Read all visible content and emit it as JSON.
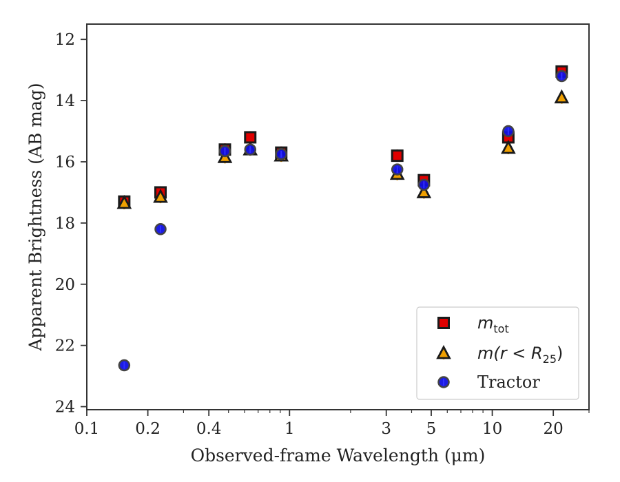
{
  "chart_data": {
    "type": "scatter",
    "title": "",
    "xlabel": "Observed-frame Wavelength (μm)",
    "ylabel": "Apparent Brightness (AB mag)",
    "x_scale": "log",
    "xlim": [
      0.1,
      30
    ],
    "ylim": [
      24.1,
      11.5
    ],
    "y_inverted": true,
    "x_ticks": [
      0.1,
      0.2,
      0.4,
      1,
      3,
      5,
      10,
      20
    ],
    "x_tick_labels": [
      "0.1",
      "0.2",
      "0.4",
      "1",
      "3",
      "5",
      "10",
      "20"
    ],
    "y_ticks": [
      12,
      14,
      16,
      18,
      20,
      22,
      24
    ],
    "y_tick_labels": [
      "12",
      "14",
      "16",
      "18",
      "20",
      "22",
      "24"
    ],
    "grid": false,
    "legend_position": "bottom-right",
    "series": [
      {
        "name": "m_tot",
        "legend_main": "m",
        "legend_sub": "tot",
        "marker": "square",
        "color": "#e00000",
        "edgecolor": "#1a1a1a",
        "x": [
          0.153,
          0.231,
          0.48,
          0.64,
          0.91,
          3.4,
          4.6,
          12.0,
          22.0
        ],
        "y": [
          17.3,
          17.0,
          15.6,
          15.2,
          15.7,
          15.8,
          16.6,
          15.2,
          13.05
        ]
      },
      {
        "name": "m(r < R_25)",
        "legend_main": "m(r < R",
        "legend_sub": "25",
        "legend_end": ")",
        "marker": "triangle",
        "color": "#f0a000",
        "edgecolor": "#1a1a1a",
        "x": [
          0.153,
          0.231,
          0.48,
          0.64,
          0.91,
          3.4,
          4.6,
          12.0,
          22.0
        ],
        "y": [
          17.35,
          17.15,
          15.85,
          15.6,
          15.8,
          16.4,
          17.0,
          15.55,
          13.9
        ]
      },
      {
        "name": "Tractor",
        "marker": "circle",
        "color": "#1010e0",
        "edgecolor": "#444444",
        "x": [
          0.153,
          0.231,
          0.48,
          0.64,
          0.91,
          3.4,
          4.6,
          12.0,
          22.0
        ],
        "y": [
          22.65,
          18.2,
          15.65,
          15.6,
          15.75,
          16.25,
          16.75,
          15.0,
          13.2
        ]
      }
    ]
  }
}
